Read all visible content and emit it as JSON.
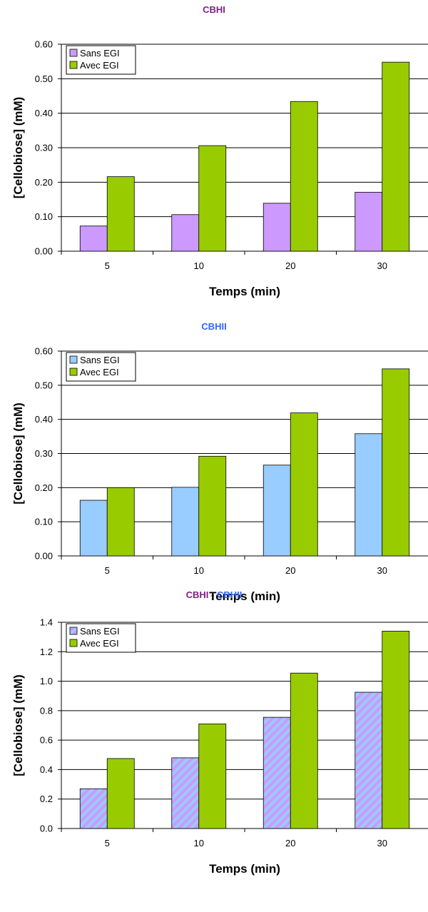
{
  "chart_data": [
    {
      "type": "bar",
      "title_parts": [
        {
          "text": "CBHI",
          "color": "#7f1f7f"
        }
      ],
      "xlabel": "Temps (min)",
      "ylabel": "[Cellobiose] (mM)",
      "categories": [
        "5",
        "10",
        "20",
        "30"
      ],
      "ylim": [
        0,
        0.6
      ],
      "yticks": [
        "0.00",
        "0.10",
        "0.20",
        "0.30",
        "0.40",
        "0.50",
        "0.60"
      ],
      "grid": true,
      "legend_position": "top-left",
      "series": [
        {
          "name": "Sans EGI",
          "values": [
            0.073,
            0.106,
            0.139,
            0.171
          ],
          "color": "#cc99ff",
          "pattern": "solid"
        },
        {
          "name": "Avec EGI",
          "values": [
            0.216,
            0.306,
            0.434,
            0.548
          ],
          "color": "#99cc00",
          "pattern": "solid"
        }
      ]
    },
    {
      "type": "bar",
      "title_parts": [
        {
          "text": "CBHII",
          "color": "#3366ff"
        }
      ],
      "xlabel": "Temps (min)",
      "ylabel": "[Cellobiose] (mM)",
      "categories": [
        "5",
        "10",
        "20",
        "30"
      ],
      "ylim": [
        0,
        0.6
      ],
      "yticks": [
        "0.00",
        "0.10",
        "0.20",
        "0.30",
        "0.40",
        "0.50",
        "0.60"
      ],
      "grid": true,
      "legend_position": "top-left",
      "series": [
        {
          "name": "Sans EGI",
          "values": [
            0.163,
            0.201,
            0.266,
            0.358
          ],
          "color": "#99ccff",
          "pattern": "solid"
        },
        {
          "name": "Avec EGI",
          "values": [
            0.2,
            0.292,
            0.419,
            0.548
          ],
          "color": "#99cc00",
          "pattern": "solid"
        }
      ]
    },
    {
      "type": "bar",
      "title_parts": [
        {
          "text": "CBHI",
          "color": "#7f1f7f"
        },
        {
          "text": " - ",
          "color": "#000000"
        },
        {
          "text": "CBHII",
          "color": "#3366ff"
        }
      ],
      "xlabel": "Temps (min)",
      "ylabel": "[Cellobiose] (mM)",
      "categories": [
        "5",
        "10",
        "20",
        "30"
      ],
      "ylim": [
        0,
        1.4
      ],
      "yticks": [
        "0.0",
        "0.2",
        "0.4",
        "0.6",
        "0.8",
        "1.0",
        "1.2",
        "1.4"
      ],
      "grid": true,
      "legend_position": "top-left",
      "series": [
        {
          "name": "Sans EGI",
          "values": [
            0.27,
            0.48,
            0.755,
            0.925
          ],
          "color": "#cc99ff",
          "color2": "#99ccff",
          "pattern": "hatch"
        },
        {
          "name": "Avec EGI",
          "values": [
            0.475,
            0.71,
            1.055,
            1.34
          ],
          "color": "#99cc00",
          "pattern": "solid"
        }
      ]
    }
  ]
}
